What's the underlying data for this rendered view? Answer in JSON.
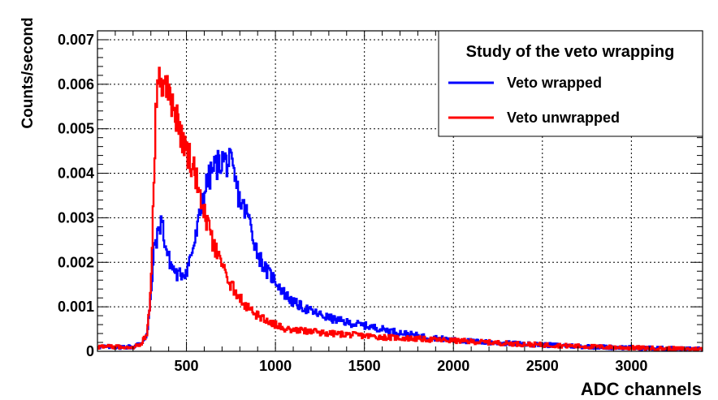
{
  "chart_data": {
    "type": "line",
    "title": "",
    "xlabel": "ADC channels",
    "ylabel": "Counts/second",
    "xlim": [
      0,
      3400
    ],
    "ylim": [
      0,
      0.0072
    ],
    "grid": true,
    "legend": {
      "title": "Study of the veto wrapping",
      "placement": "top-right"
    },
    "x_ticks": [
      {
        "value": 500,
        "label": "500"
      },
      {
        "value": 1000,
        "label": "1000"
      },
      {
        "value": 1500,
        "label": "1500"
      },
      {
        "value": 2000,
        "label": "2000"
      },
      {
        "value": 2500,
        "label": "2500"
      },
      {
        "value": 3000,
        "label": "3000"
      }
    ],
    "y_ticks": [
      {
        "value": 0,
        "label": "0"
      },
      {
        "value": 0.001,
        "label": "0.001"
      },
      {
        "value": 0.002,
        "label": "0.002"
      },
      {
        "value": 0.003,
        "label": "0.003"
      },
      {
        "value": 0.004,
        "label": "0.004"
      },
      {
        "value": 0.005,
        "label": "0.005"
      },
      {
        "value": 0.006,
        "label": "0.006"
      },
      {
        "value": 0.007,
        "label": "0.007"
      }
    ],
    "series": [
      {
        "name": "Veto wrapped",
        "color": "#0000ff",
        "x": [
          0,
          100,
          200,
          250,
          280,
          300,
          320,
          340,
          360,
          380,
          400,
          420,
          450,
          500,
          550,
          600,
          650,
          700,
          750,
          800,
          850,
          900,
          950,
          1000,
          1050,
          1100,
          1200,
          1300,
          1400,
          1500,
          1600,
          1700,
          1800,
          1900,
          2000,
          2200,
          2400,
          2600,
          2800,
          3000,
          3200,
          3400
        ],
        "values": [
          0.0001,
          0.0001,
          0.0001,
          0.0002,
          0.0004,
          0.0012,
          0.0024,
          0.0026,
          0.003,
          0.0024,
          0.0021,
          0.0019,
          0.0017,
          0.0018,
          0.0025,
          0.0036,
          0.0041,
          0.0043,
          0.0042,
          0.0034,
          0.003,
          0.0022,
          0.0018,
          0.0016,
          0.0013,
          0.0011,
          0.0009,
          0.00075,
          0.00065,
          0.00058,
          0.0005,
          0.00042,
          0.00035,
          0.0003,
          0.00025,
          0.0002,
          0.00016,
          0.00013,
          0.0001,
          8e-05,
          6e-05,
          5e-05
        ]
      },
      {
        "name": "Veto unwrapped",
        "color": "#ff0000",
        "x": [
          0,
          100,
          200,
          250,
          280,
          300,
          320,
          330,
          350,
          370,
          400,
          450,
          500,
          550,
          600,
          650,
          700,
          750,
          800,
          850,
          900,
          950,
          1000,
          1050,
          1100,
          1200,
          1300,
          1400,
          1500,
          1600,
          1700,
          1800,
          1900,
          2000,
          2200,
          2400,
          2600,
          2800,
          3000,
          3200,
          3400
        ],
        "values": [
          0.0001,
          0.0001,
          0.0001,
          0.0002,
          0.0004,
          0.0014,
          0.004,
          0.0058,
          0.0061,
          0.006,
          0.0058,
          0.0052,
          0.0045,
          0.004,
          0.0031,
          0.0024,
          0.0019,
          0.0015,
          0.0012,
          0.00095,
          0.0008,
          0.0007,
          0.0006,
          0.00052,
          0.00048,
          0.00045,
          0.0004,
          0.00038,
          0.00035,
          0.00032,
          0.0003,
          0.00028,
          0.00026,
          0.00024,
          0.0002,
          0.00016,
          0.00013,
          0.0001,
          8e-05,
          6e-05,
          5e-05
        ]
      }
    ]
  }
}
